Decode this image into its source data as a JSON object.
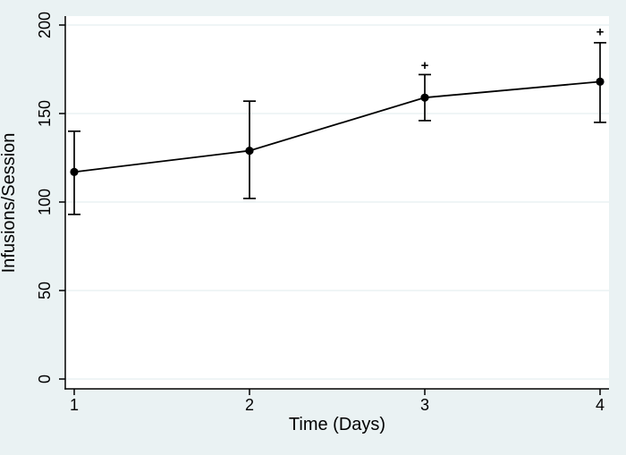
{
  "colors": {
    "background": "#eaf2f3",
    "plot_background": "#ffffff",
    "gridline": "#eaf2f3",
    "axis": "#000000",
    "series_line": "#000000",
    "marker": "#000000",
    "text": "#000000"
  },
  "chart_data": {
    "type": "line",
    "title": "",
    "xlabel": "Time (Days)",
    "ylabel": "Infusions/Session",
    "x": [
      1,
      2,
      3,
      4
    ],
    "xticks": [
      1,
      2,
      3,
      4
    ],
    "yticks": [
      0,
      50,
      100,
      150,
      200
    ],
    "xlim": [
      0.95,
      4.05
    ],
    "ylim": [
      -5.5,
      205
    ],
    "grid": true,
    "legend": false,
    "series": [
      {
        "name": "Infusions/Session",
        "values": [
          117,
          129,
          159,
          168
        ],
        "ci_low": [
          93,
          102,
          146,
          145
        ],
        "ci_high": [
          140,
          157,
          172,
          190
        ],
        "marker": "filled-circle",
        "error_bars": true
      }
    ],
    "annotations": [
      {
        "x": 3,
        "y": 177,
        "text": "+"
      },
      {
        "x": 4,
        "y": 196,
        "text": "+"
      }
    ]
  }
}
